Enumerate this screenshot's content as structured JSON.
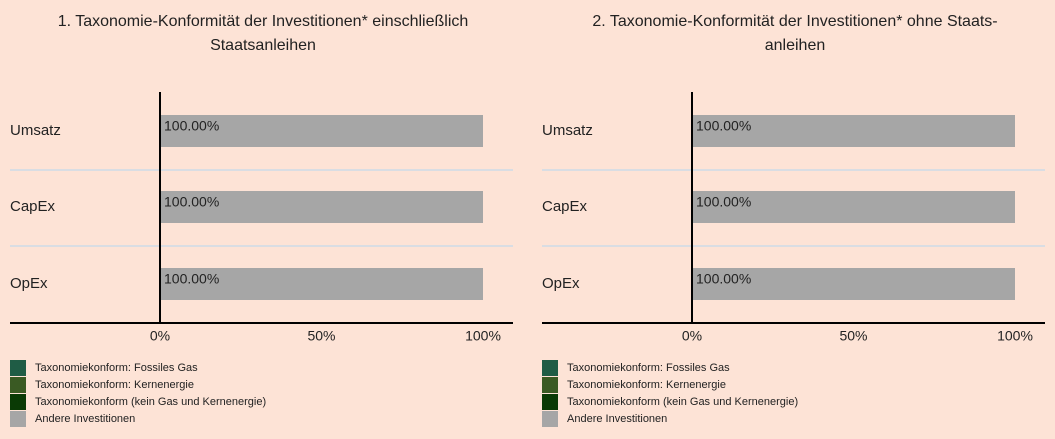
{
  "chart_data": [
    {
      "type": "bar",
      "orientation": "horizontal",
      "title": [
        "1. Taxonomie-Konformität der Investitionen* einschließlich",
        "Staatsanleihen"
      ],
      "categories": [
        "Umsatz",
        "CapEx",
        "OpEx"
      ],
      "series": [
        {
          "name": "Taxonomiekonform: Fossiles Gas",
          "color": "#1f5c45",
          "values": [
            0,
            0,
            0
          ]
        },
        {
          "name": "Taxonomiekonform: Kernenergie",
          "color": "#3a5a23",
          "values": [
            0,
            0,
            0
          ]
        },
        {
          "name": "Taxonomiekonform (kein Gas und Kernenergie)",
          "color": "#0a3a05",
          "values": [
            0,
            0,
            0
          ]
        },
        {
          "name": "Andere Investitionen",
          "color": "#a6a6a6",
          "values": [
            100,
            100,
            100
          ],
          "value_labels": [
            "100.00%",
            "100.00%",
            "100.00%"
          ]
        }
      ],
      "xlim": [
        0,
        100
      ],
      "xticks": [
        {
          "value": 0,
          "label": "0%"
        },
        {
          "value": 50,
          "label": "50%"
        },
        {
          "value": 100,
          "label": "100%"
        }
      ]
    },
    {
      "type": "bar",
      "orientation": "horizontal",
      "title": [
        "2. Taxonomie-Konformität der Investitionen* ohne Staats-",
        "anleihen"
      ],
      "categories": [
        "Umsatz",
        "CapEx",
        "OpEx"
      ],
      "series": [
        {
          "name": "Taxonomiekonform: Fossiles Gas",
          "color": "#1f5c45",
          "values": [
            0,
            0,
            0
          ]
        },
        {
          "name": "Taxonomiekonform: Kernenergie",
          "color": "#3a5a23",
          "values": [
            0,
            0,
            0
          ]
        },
        {
          "name": "Taxonomiekonform (kein Gas und Kernenergie)",
          "color": "#0a3a05",
          "values": [
            0,
            0,
            0
          ]
        },
        {
          "name": "Andere Investitionen",
          "color": "#a6a6a6",
          "values": [
            100,
            100,
            100
          ],
          "value_labels": [
            "100.00%",
            "100.00%",
            "100.00%"
          ]
        }
      ],
      "xlim": [
        0,
        100
      ],
      "xticks": [
        {
          "value": 0,
          "label": "0%"
        },
        {
          "value": 50,
          "label": "50%"
        },
        {
          "value": 100,
          "label": "100%"
        }
      ]
    }
  ]
}
